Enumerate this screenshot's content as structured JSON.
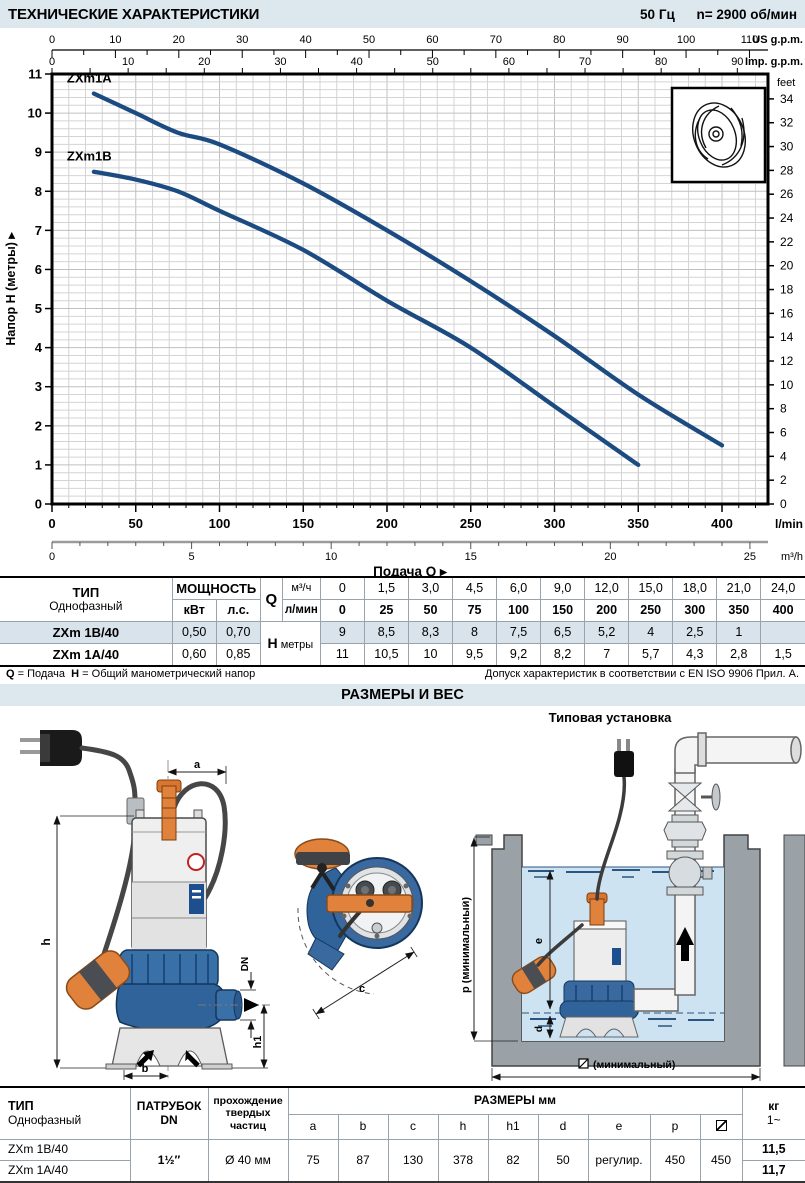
{
  "header": {
    "title": "ТЕХНИЧЕСКИЕ ХАРАКТЕРИСТИКИ",
    "frequency": "50 Гц",
    "speed": "n= 2900 об/мин"
  },
  "chart_data": {
    "type": "line",
    "xlabel": "Подача Q",
    "ylabel": "Напор H (метры)",
    "axis_arrow": "▸",
    "ylim": [
      0,
      11
    ],
    "xlim_lmin": [
      0,
      427
    ],
    "grid": true,
    "curve_color": "#1b4b80",
    "x_axes_top": [
      {
        "unit": "US g.p.m.",
        "max": 110,
        "label_step": 10,
        "minor_step": 5,
        "lmin_per_unit": 3.78541
      },
      {
        "unit": "Imp. g.p.m.",
        "max": 90,
        "label_step": 10,
        "minor_step": 5,
        "lmin_per_unit": 4.54609
      }
    ],
    "x_axis_bottom": {
      "unit": "l/min",
      "ticks": [
        0,
        50,
        100,
        150,
        200,
        250,
        300,
        350,
        400
      ],
      "minor_step": 10
    },
    "x_axis_secondary": {
      "unit": "m³/h",
      "ticks": [
        0,
        5,
        10,
        15,
        20,
        25
      ],
      "minor_step": 1,
      "lmin_per_unit": 16.6667
    },
    "y_axis_left": {
      "ticks": [
        0,
        1,
        2,
        3,
        4,
        5,
        6,
        7,
        8,
        9,
        10,
        11
      ]
    },
    "y_axis_right": {
      "unit": "feet",
      "max": 34,
      "step": 2,
      "m_per_unit": 0.3048
    },
    "series": [
      {
        "name": "ZXm1A",
        "x_lmin": [
          25,
          50,
          75,
          100,
          150,
          200,
          250,
          300,
          350,
          400
        ],
        "y_m": [
          10.5,
          10,
          9.5,
          9.2,
          8.2,
          7,
          5.7,
          4.3,
          2.8,
          1.5
        ]
      },
      {
        "name": "ZXm1B",
        "x_lmin": [
          25,
          50,
          75,
          100,
          150,
          200,
          250,
          300,
          350
        ],
        "y_m": [
          8.5,
          8.3,
          8,
          7.5,
          6.5,
          5.2,
          4,
          2.5,
          1
        ]
      }
    ]
  },
  "performance_table": {
    "type_header": "ТИП",
    "type_sub": "Однофазный",
    "power_header": "МОЩНОСТЬ",
    "power_units": [
      "кВт",
      "л.с."
    ],
    "q_label": "Q",
    "q_row1_unit": "м³/ч",
    "q_row2_unit": "л/мин",
    "q_m3h": [
      "0",
      "1,5",
      "3,0",
      "4,5",
      "6,0",
      "9,0",
      "12,0",
      "15,0",
      "18,0",
      "21,0",
      "24,0"
    ],
    "q_lmin": [
      "0",
      "25",
      "50",
      "75",
      "100",
      "150",
      "200",
      "250",
      "300",
      "350",
      "400"
    ],
    "h_label": "H",
    "h_unit": "метры",
    "rows": [
      {
        "model": "ZXm 1B/40",
        "kw": "0,50",
        "hp": "0,70",
        "h": [
          "9",
          "8,5",
          "8,3",
          "8",
          "7,5",
          "6,5",
          "5,2",
          "4",
          "2,5",
          "1",
          ""
        ]
      },
      {
        "model": "ZXm 1A/40",
        "kw": "0,60",
        "hp": "0,85",
        "h": [
          "11",
          "10,5",
          "10",
          "9,5",
          "9,2",
          "8,2",
          "7",
          "5,7",
          "4,3",
          "2,8",
          "1,5"
        ]
      }
    ]
  },
  "footnote": {
    "q_sym": "Q",
    "q_text": "= Подача",
    "h_sym": "H",
    "h_text": "= Общий манометрический напор",
    "right": "Допуск характеристик в соответствии с EN ISO 9906 Прил. А."
  },
  "section2_title": "РАЗМЕРЫ И ВЕС",
  "installation_title": "Типовая установка",
  "drawing_labels": {
    "a": "a",
    "b": "b",
    "c": "c",
    "h": "h",
    "h1": "h1",
    "dn": "DN",
    "e": "e",
    "d": "d",
    "p": "p  (минимальный)",
    "min_diameter_text": "(минимальный)",
    "min_diameter_symbol": "⧄"
  },
  "dimensions_table": {
    "type_header": "ТИП",
    "type_sub": "Однофазный",
    "port_header": "ПАТРУБОК",
    "port_sub": "DN",
    "solids_header": "прохождение",
    "solids_sub": "твердых частиц",
    "sizes_header": "РАЗМЕРЫ мм",
    "size_cols": [
      "a",
      "b",
      "c",
      "h",
      "h1",
      "d",
      "e",
      "p",
      "⧄"
    ],
    "weight_header": "кг",
    "weight_sub": "1~",
    "shared": {
      "dn": "1½″",
      "solids": "Ø 40 мм",
      "sizes": [
        "75",
        "87",
        "130",
        "378",
        "82",
        "50",
        "регулир.",
        "450",
        "450"
      ]
    },
    "rows": [
      {
        "model": "ZXm 1B/40",
        "weight": "11,5"
      },
      {
        "model": "ZXm 1A/40",
        "weight": "11,7"
      }
    ]
  }
}
